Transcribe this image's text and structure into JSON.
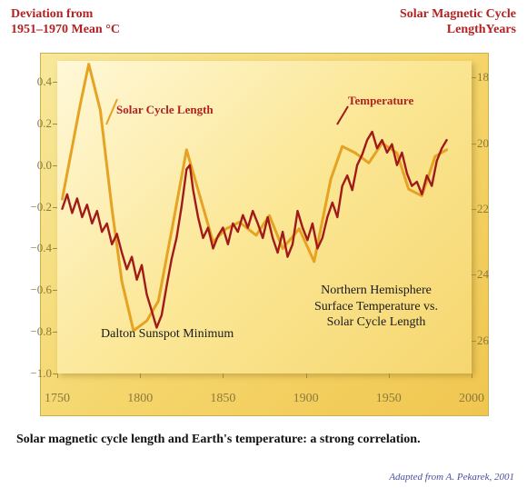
{
  "labels": {
    "y_left_line1": "Deviation from",
    "y_left_line2": "1951–1970 Mean °C",
    "y_right_line1": "Solar Magnetic Cycle",
    "y_right_line2": "LengthYears",
    "series_solar": "Solar Cycle Length",
    "series_temp": "Temperature",
    "annotation_dalton": "Dalton Sunspot Minimum",
    "annotation_nh_line1": "Northern Hemisphere",
    "annotation_nh_line2": "Surface Temperature vs.",
    "annotation_nh_line3": "Solar Cycle Length",
    "caption": "Solar magnetic cycle length and Earth's temperature: a strong correlation.",
    "credit": "Adapted from A. Pekarek, 2001"
  },
  "chart": {
    "type": "line",
    "background_gradient": [
      "#fff8d8",
      "#fbe796",
      "#f6d66f"
    ],
    "outer_gradient": [
      "#f7e89a",
      "#f5d56a",
      "#f0c650"
    ],
    "axis_color": "#a08b3a",
    "tick_text_color": "#8a7a3a",
    "x_range": [
      1750,
      2000
    ],
    "y_left_range": [
      -1.0,
      0.5
    ],
    "y_right_range": [
      27,
      17.5
    ],
    "x_ticks": [
      1750,
      1800,
      1850,
      1900,
      1950,
      2000
    ],
    "y_left_ticks": [
      0.4,
      0.2,
      0.0,
      -0.2,
      -0.4,
      -0.6,
      -0.8,
      -1.0
    ],
    "y_left_tick_labels": [
      "0.4",
      "0.2",
      "0.0",
      "−0.2",
      "−0.4",
      "−0.6",
      "−0.8",
      "−1.0"
    ],
    "y_right_ticks": [
      18,
      20,
      22,
      24,
      26
    ],
    "series": {
      "solar": {
        "color": "#e6a323",
        "width": 3,
        "axis": "right",
        "points": [
          [
            1753,
            21.7
          ],
          [
            1764,
            18.8
          ],
          [
            1769,
            17.6
          ],
          [
            1776,
            19.0
          ],
          [
            1783,
            22.0
          ],
          [
            1789,
            24.2
          ],
          [
            1796,
            25.7
          ],
          [
            1804,
            25.4
          ],
          [
            1811,
            24.8
          ],
          [
            1820,
            22.4
          ],
          [
            1828,
            20.2
          ],
          [
            1836,
            21.6
          ],
          [
            1844,
            23.0
          ],
          [
            1852,
            22.6
          ],
          [
            1860,
            22.4
          ],
          [
            1870,
            22.8
          ],
          [
            1878,
            22.2
          ],
          [
            1886,
            23.2
          ],
          [
            1896,
            22.6
          ],
          [
            1905,
            23.6
          ],
          [
            1915,
            21.1
          ],
          [
            1922,
            20.1
          ],
          [
            1930,
            20.3
          ],
          [
            1938,
            20.6
          ],
          [
            1946,
            20.0
          ],
          [
            1955,
            20.3
          ],
          [
            1962,
            21.4
          ],
          [
            1970,
            21.6
          ],
          [
            1978,
            20.4
          ],
          [
            1985,
            20.2
          ]
        ]
      },
      "temperature": {
        "color": "#a11a1a",
        "width": 2.4,
        "axis": "left",
        "points": [
          [
            1753,
            -0.21
          ],
          [
            1756,
            -0.14
          ],
          [
            1759,
            -0.23
          ],
          [
            1762,
            -0.16
          ],
          [
            1765,
            -0.25
          ],
          [
            1768,
            -0.19
          ],
          [
            1771,
            -0.28
          ],
          [
            1774,
            -0.22
          ],
          [
            1777,
            -0.32
          ],
          [
            1780,
            -0.28
          ],
          [
            1783,
            -0.38
          ],
          [
            1786,
            -0.33
          ],
          [
            1789,
            -0.42
          ],
          [
            1792,
            -0.5
          ],
          [
            1795,
            -0.44
          ],
          [
            1798,
            -0.55
          ],
          [
            1801,
            -0.48
          ],
          [
            1804,
            -0.62
          ],
          [
            1807,
            -0.7
          ],
          [
            1810,
            -0.78
          ],
          [
            1813,
            -0.72
          ],
          [
            1816,
            -0.58
          ],
          [
            1819,
            -0.45
          ],
          [
            1822,
            -0.35
          ],
          [
            1825,
            -0.2
          ],
          [
            1828,
            -0.02
          ],
          [
            1830,
            0.0
          ],
          [
            1832,
            -0.12
          ],
          [
            1835,
            -0.25
          ],
          [
            1838,
            -0.35
          ],
          [
            1841,
            -0.3
          ],
          [
            1844,
            -0.4
          ],
          [
            1847,
            -0.34
          ],
          [
            1850,
            -0.3
          ],
          [
            1853,
            -0.38
          ],
          [
            1856,
            -0.28
          ],
          [
            1859,
            -0.32
          ],
          [
            1862,
            -0.24
          ],
          [
            1865,
            -0.3
          ],
          [
            1868,
            -0.22
          ],
          [
            1871,
            -0.28
          ],
          [
            1874,
            -0.35
          ],
          [
            1877,
            -0.25
          ],
          [
            1880,
            -0.35
          ],
          [
            1883,
            -0.42
          ],
          [
            1886,
            -0.32
          ],
          [
            1889,
            -0.44
          ],
          [
            1892,
            -0.38
          ],
          [
            1895,
            -0.22
          ],
          [
            1898,
            -0.3
          ],
          [
            1901,
            -0.36
          ],
          [
            1904,
            -0.28
          ],
          [
            1907,
            -0.4
          ],
          [
            1910,
            -0.35
          ],
          [
            1913,
            -0.25
          ],
          [
            1916,
            -0.18
          ],
          [
            1919,
            -0.25
          ],
          [
            1922,
            -0.1
          ],
          [
            1925,
            -0.05
          ],
          [
            1928,
            -0.12
          ],
          [
            1931,
            0.0
          ],
          [
            1934,
            0.05
          ],
          [
            1937,
            0.12
          ],
          [
            1940,
            0.16
          ],
          [
            1943,
            0.08
          ],
          [
            1946,
            0.12
          ],
          [
            1949,
            0.06
          ],
          [
            1952,
            0.1
          ],
          [
            1955,
            0.0
          ],
          [
            1958,
            0.06
          ],
          [
            1961,
            -0.04
          ],
          [
            1964,
            -0.1
          ],
          [
            1967,
            -0.08
          ],
          [
            1970,
            -0.14
          ],
          [
            1973,
            -0.05
          ],
          [
            1976,
            -0.1
          ],
          [
            1979,
            0.02
          ],
          [
            1982,
            0.08
          ],
          [
            1985,
            0.12
          ]
        ]
      }
    }
  }
}
